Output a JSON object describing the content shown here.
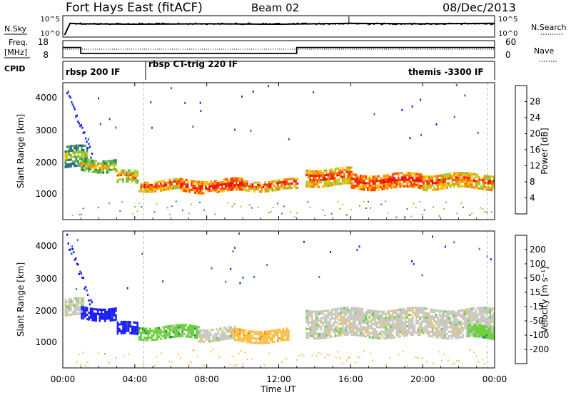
{
  "header": {
    "title": "Fort Hays East (fitACF)",
    "beam": "Beam 02",
    "date": "08/Dec/2013"
  },
  "noise_panel": {
    "left_label": "N.Sky",
    "right_label": "N.Search",
    "left_ticks": [
      "10^5",
      "10^0"
    ],
    "right_ticks": [
      "10^5",
      "10^0"
    ]
  },
  "freq_panel": {
    "left_label_top": "Freq.",
    "left_label_unit": "[MHz]",
    "right_label": "Nave",
    "left_ticks": [
      "18",
      "8"
    ],
    "right_ticks": [
      "60",
      "0"
    ]
  },
  "cpid_panel": {
    "label": "CPID",
    "segments": [
      "rbsp 200 IF",
      "rbsp CT-trig 220 IF",
      "themis -3300 IF"
    ]
  },
  "x_axis": {
    "label": "Time UT",
    "ticks": [
      "00:00",
      "04:00",
      "08:00",
      "12:00",
      "16:00",
      "20:00",
      "00:00"
    ],
    "range_hours": [
      0,
      24
    ]
  },
  "power_panel": {
    "ylabel": "Slant Range [km]",
    "y_ticks": [
      "1000",
      "2000",
      "3000",
      "4000"
    ],
    "ylim_km": [
      200,
      4500
    ],
    "colorbar_label": "Power [dB]",
    "colorbar_ticks": [
      "4",
      "8",
      "12",
      "16",
      "20",
      "24",
      "28"
    ],
    "colors": [
      "#1a1aff",
      "#1f4fa8",
      "#2e7d52",
      "#59b34d",
      "#9acd32",
      "#ffc000",
      "#ff8000",
      "#ff4000",
      "#ee1010"
    ]
  },
  "velocity_panel": {
    "ylabel": "Slant Range [km]",
    "y_ticks": [
      "1000",
      "2000",
      "3000",
      "4000"
    ],
    "ylim_km": [
      200,
      4500
    ],
    "colorbar_label": "Velocity [m s⁻¹]",
    "colorbar_ticks": [
      "200",
      "100",
      "50",
      "15",
      "-15",
      "-50",
      "-100",
      "-200"
    ],
    "colors": [
      "#1a1aff",
      "#1f4fa8",
      "#2e8b57",
      "#6ccf3c",
      "#c8c8c0",
      "#ffbf40",
      "#ff8c00",
      "#ff5000",
      "#ee1010"
    ],
    "ground_scatter_color": "#c8c8c0"
  },
  "chart_data": {
    "type": "heatmap",
    "x_unit": "hours UT",
    "y_unit": "km",
    "noise_sky_log10": [
      [
        0.1,
        0.5
      ],
      [
        0.4,
        3.2
      ],
      [
        1.0,
        3.1
      ],
      [
        4.0,
        3.0
      ],
      [
        8.0,
        3.1
      ],
      [
        12.0,
        3.0
      ],
      [
        16.0,
        3.2
      ],
      [
        20.0,
        3.1
      ],
      [
        24.0,
        3.2
      ]
    ],
    "frequency_mhz": [
      [
        0.0,
        14
      ],
      [
        1.0,
        14
      ],
      [
        1.0,
        10.5
      ],
      [
        13.0,
        10.5
      ],
      [
        13.0,
        14
      ],
      [
        24.0,
        14
      ]
    ],
    "nave": [
      [
        0,
        30
      ],
      [
        24,
        30
      ]
    ],
    "cpid_boundaries_hours": [
      4.5,
      24.0
    ],
    "power_bands": [
      {
        "t_start": 0.1,
        "t_end": 1.4,
        "r_low": 1800,
        "r_high": 2500,
        "level": 2
      },
      {
        "t_start": 1.0,
        "t_end": 3.0,
        "r_low": 1700,
        "r_high": 2100,
        "level": 3
      },
      {
        "t_start": 3.0,
        "t_end": 4.2,
        "r_low": 1300,
        "r_high": 1700,
        "level": 4
      },
      {
        "t_start": 4.2,
        "t_end": 6.5,
        "r_low": 1100,
        "r_high": 1400,
        "level": 5
      },
      {
        "t_start": 6.5,
        "t_end": 10.0,
        "r_low": 1050,
        "r_high": 1450,
        "level": 6
      },
      {
        "t_start": 10.0,
        "t_end": 13.0,
        "r_low": 1100,
        "r_high": 1400,
        "level": 5
      },
      {
        "t_start": 13.5,
        "t_end": 16.0,
        "r_low": 1250,
        "r_high": 1800,
        "level": 5
      },
      {
        "t_start": 16.0,
        "t_end": 20.0,
        "r_low": 1150,
        "r_high": 1600,
        "level": 6
      },
      {
        "t_start": 20.0,
        "t_end": 24.0,
        "r_low": 1150,
        "r_high": 1600,
        "level": 5
      }
    ],
    "velocity_bands": [
      {
        "t_start": 0.1,
        "t_end": 1.2,
        "r_low": 1800,
        "r_high": 2300,
        "value_ms": 15,
        "class": 4
      },
      {
        "t_start": 1.0,
        "t_end": 3.0,
        "r_low": 1700,
        "r_high": 2100,
        "value_ms": 200,
        "class": 0
      },
      {
        "t_start": 3.0,
        "t_end": 4.2,
        "r_low": 1200,
        "r_high": 1600,
        "value_ms": 200,
        "class": 0
      },
      {
        "t_start": 4.2,
        "t_end": 7.5,
        "r_low": 1100,
        "r_high": 1500,
        "value_ms": 30,
        "class": 3
      },
      {
        "t_start": 7.5,
        "t_end": 9.5,
        "r_low": 1050,
        "r_high": 1450,
        "value_ms": 0,
        "class": 4
      },
      {
        "t_start": 9.5,
        "t_end": 12.5,
        "r_low": 1000,
        "r_high": 1400,
        "value_ms": -50,
        "class": 5
      },
      {
        "t_start": 13.5,
        "t_end": 24.0,
        "r_low": 1150,
        "r_high": 2000,
        "value_ms": 0,
        "class": 4
      },
      {
        "t_start": 22.5,
        "t_end": 24.0,
        "r_low": 1100,
        "r_high": 1500,
        "value_ms": 50,
        "class": 3
      }
    ]
  }
}
